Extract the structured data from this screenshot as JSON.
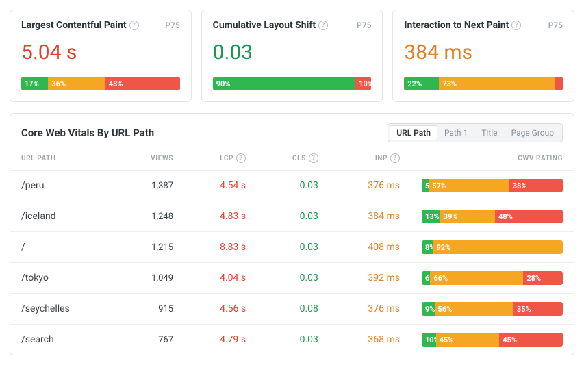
{
  "colors": {
    "good": "#2eb84f",
    "needs": "#f5a623",
    "poor": "#f05648",
    "value_red": "#e53e2e",
    "value_green": "#1a9850",
    "value_orange": "#e67e22"
  },
  "p75_label": "P75",
  "cards": [
    {
      "title": "Largest Contentful Paint",
      "value": "5.04 s",
      "value_color": "value_red",
      "dist": {
        "good": 17,
        "needs": 36,
        "poor": 48
      },
      "show": {
        "good": true,
        "needs": true,
        "poor": true
      }
    },
    {
      "title": "Cumulative Layout Shift",
      "value": "0.03",
      "value_color": "value_green",
      "dist": {
        "good": 90,
        "needs": 0,
        "poor": 10
      },
      "show": {
        "good": true,
        "needs": false,
        "poor": true
      }
    },
    {
      "title": "Interaction to Next Paint",
      "value": "384 ms",
      "value_color": "value_orange",
      "dist": {
        "good": 22,
        "needs": 73,
        "poor": 5
      },
      "show": {
        "good": true,
        "needs": true,
        "poor": false
      }
    }
  ],
  "panel": {
    "title": "Core Web Vitals By URL Path",
    "toggle": {
      "options": [
        "URL Path",
        "Path 1",
        "Title",
        "Page Group"
      ],
      "active": 0
    },
    "columns": {
      "path": "URL PATH",
      "views": "VIEWS",
      "lcp": "LCP",
      "cls": "CLS",
      "inp": "INP",
      "rating": "CWV RATING"
    },
    "rows": [
      {
        "path": "/peru",
        "views": "1,387",
        "lcp": {
          "text": "4.54 s",
          "color": "value_red"
        },
        "cls": {
          "text": "0.03",
          "color": "value_green"
        },
        "inp": {
          "text": "376 ms",
          "color": "value_orange"
        },
        "dist": {
          "good": 5,
          "needs": 57,
          "poor": 38
        },
        "show": {
          "good": true,
          "needs": true,
          "poor": true
        }
      },
      {
        "path": "/iceland",
        "views": "1,248",
        "lcp": {
          "text": "4.83 s",
          "color": "value_red"
        },
        "cls": {
          "text": "0.03",
          "color": "value_green"
        },
        "inp": {
          "text": "384 ms",
          "color": "value_orange"
        },
        "dist": {
          "good": 13,
          "needs": 39,
          "poor": 48
        },
        "show": {
          "good": true,
          "needs": true,
          "poor": true
        }
      },
      {
        "path": "/",
        "views": "1,215",
        "lcp": {
          "text": "8.83 s",
          "color": "value_red"
        },
        "cls": {
          "text": "0.03",
          "color": "value_green"
        },
        "inp": {
          "text": "408 ms",
          "color": "value_orange"
        },
        "dist": {
          "good": 8,
          "needs": 92,
          "poor": 0
        },
        "show": {
          "good": true,
          "needs": true,
          "poor": false
        }
      },
      {
        "path": "/tokyo",
        "views": "1,049",
        "lcp": {
          "text": "4.04 s",
          "color": "value_red"
        },
        "cls": {
          "text": "0.03",
          "color": "value_green"
        },
        "inp": {
          "text": "392 ms",
          "color": "value_orange"
        },
        "dist": {
          "good": 6,
          "needs": 66,
          "poor": 28
        },
        "show": {
          "good": true,
          "needs": true,
          "poor": true
        }
      },
      {
        "path": "/seychelles",
        "views": "915",
        "lcp": {
          "text": "4.56 s",
          "color": "value_red"
        },
        "cls": {
          "text": "0.08",
          "color": "value_green"
        },
        "inp": {
          "text": "376 ms",
          "color": "value_orange"
        },
        "dist": {
          "good": 9,
          "needs": 56,
          "poor": 35
        },
        "show": {
          "good": true,
          "needs": true,
          "poor": true
        }
      },
      {
        "path": "/search",
        "views": "767",
        "lcp": {
          "text": "4.79 s",
          "color": "value_red"
        },
        "cls": {
          "text": "0.03",
          "color": "value_green"
        },
        "inp": {
          "text": "368 ms",
          "color": "value_orange"
        },
        "dist": {
          "good": 10,
          "needs": 45,
          "poor": 45
        },
        "show": {
          "good": true,
          "needs": true,
          "poor": true
        }
      }
    ]
  }
}
